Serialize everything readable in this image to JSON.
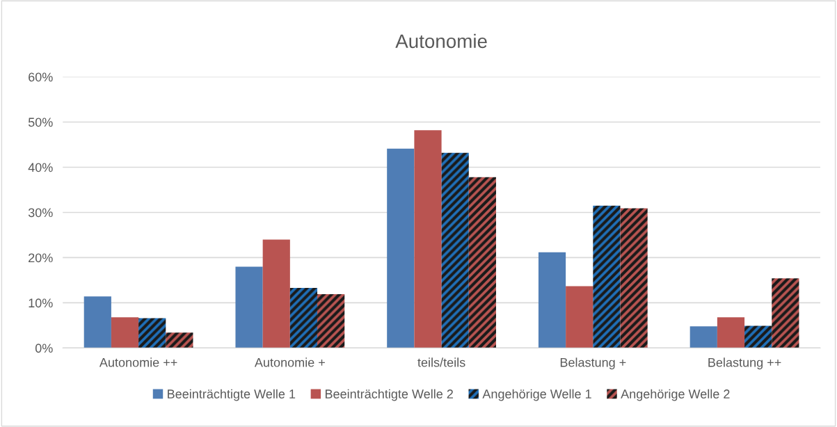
{
  "chart_data": {
    "type": "bar",
    "title": "Autonomie",
    "categories": [
      "Autonomie ++",
      "Autonomie +",
      "teils/teils",
      "Belastung +",
      "Belastung ++"
    ],
    "series": [
      {
        "name": "Beeinträchtigte Welle 1",
        "color": "#4f7db5",
        "values": [
          11.4,
          18.0,
          44.1,
          21.2,
          4.8
        ]
      },
      {
        "name": "Beeinträchtigte Welle 2",
        "color": "#b95451",
        "values": [
          6.8,
          24.0,
          48.2,
          13.7,
          6.8
        ]
      },
      {
        "name": "Angehörige Welle 1",
        "color": "#1f6fb8",
        "values": [
          6.6,
          13.3,
          43.2,
          31.5,
          4.9
        ]
      },
      {
        "name": "Angehörige Welle 2",
        "color": "#b95451",
        "values": [
          3.4,
          11.9,
          37.8,
          30.9,
          15.4
        ]
      }
    ],
    "ylim": [
      0,
      60
    ],
    "yticks": [
      {
        "value": 0,
        "label": "0%"
      },
      {
        "value": 10,
        "label": "10%"
      },
      {
        "value": 20,
        "label": "20%"
      },
      {
        "value": 30,
        "label": "30%"
      },
      {
        "value": 40,
        "label": "40%"
      },
      {
        "value": 50,
        "label": "50%"
      },
      {
        "value": 60,
        "label": "60%"
      }
    ],
    "grid": "y",
    "legend": "bottom"
  }
}
